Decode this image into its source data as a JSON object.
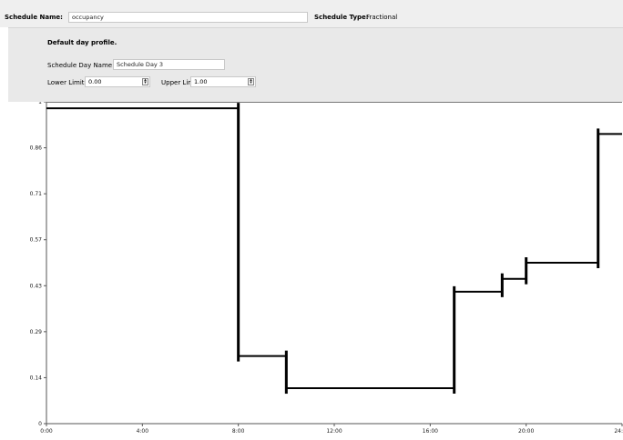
{
  "header": {
    "schedule_name_label": "Schedule Name:",
    "schedule_name_value": "occupancy",
    "schedule_type_label": "Schedule Type:",
    "schedule_type_value": "Fractional"
  },
  "profile": {
    "title": "Default day profile.",
    "day_name_label": "Schedule Day Name:",
    "day_name_value": "Schedule Day 3",
    "lower_limit_label": "Lower Limit:",
    "lower_limit_value": "0.00",
    "upper_limit_label": "Upper Limit:",
    "upper_limit_value": "1.00"
  },
  "chart_data": {
    "type": "line",
    "step": true,
    "x_tick_labels": [
      "0:00",
      "4:00",
      "8:00",
      "12:00",
      "16:00",
      "20:00",
      "24:"
    ],
    "y_tick_labels": [
      "0",
      "0.14",
      "0.29",
      "0.43",
      "0.57",
      "0.71",
      "0.86",
      "1"
    ],
    "xlim": [
      0,
      24
    ],
    "ylim": [
      0,
      1
    ],
    "segments": [
      {
        "start": 0,
        "end": 8,
        "value": 0.98
      },
      {
        "start": 8,
        "end": 10,
        "value": 0.21
      },
      {
        "start": 10,
        "end": 17,
        "value": 0.11
      },
      {
        "start": 17,
        "end": 19,
        "value": 0.41
      },
      {
        "start": 19,
        "end": 20,
        "value": 0.45
      },
      {
        "start": 20,
        "end": 23,
        "value": 0.5
      },
      {
        "start": 23,
        "end": 24,
        "value": 0.9
      }
    ]
  }
}
